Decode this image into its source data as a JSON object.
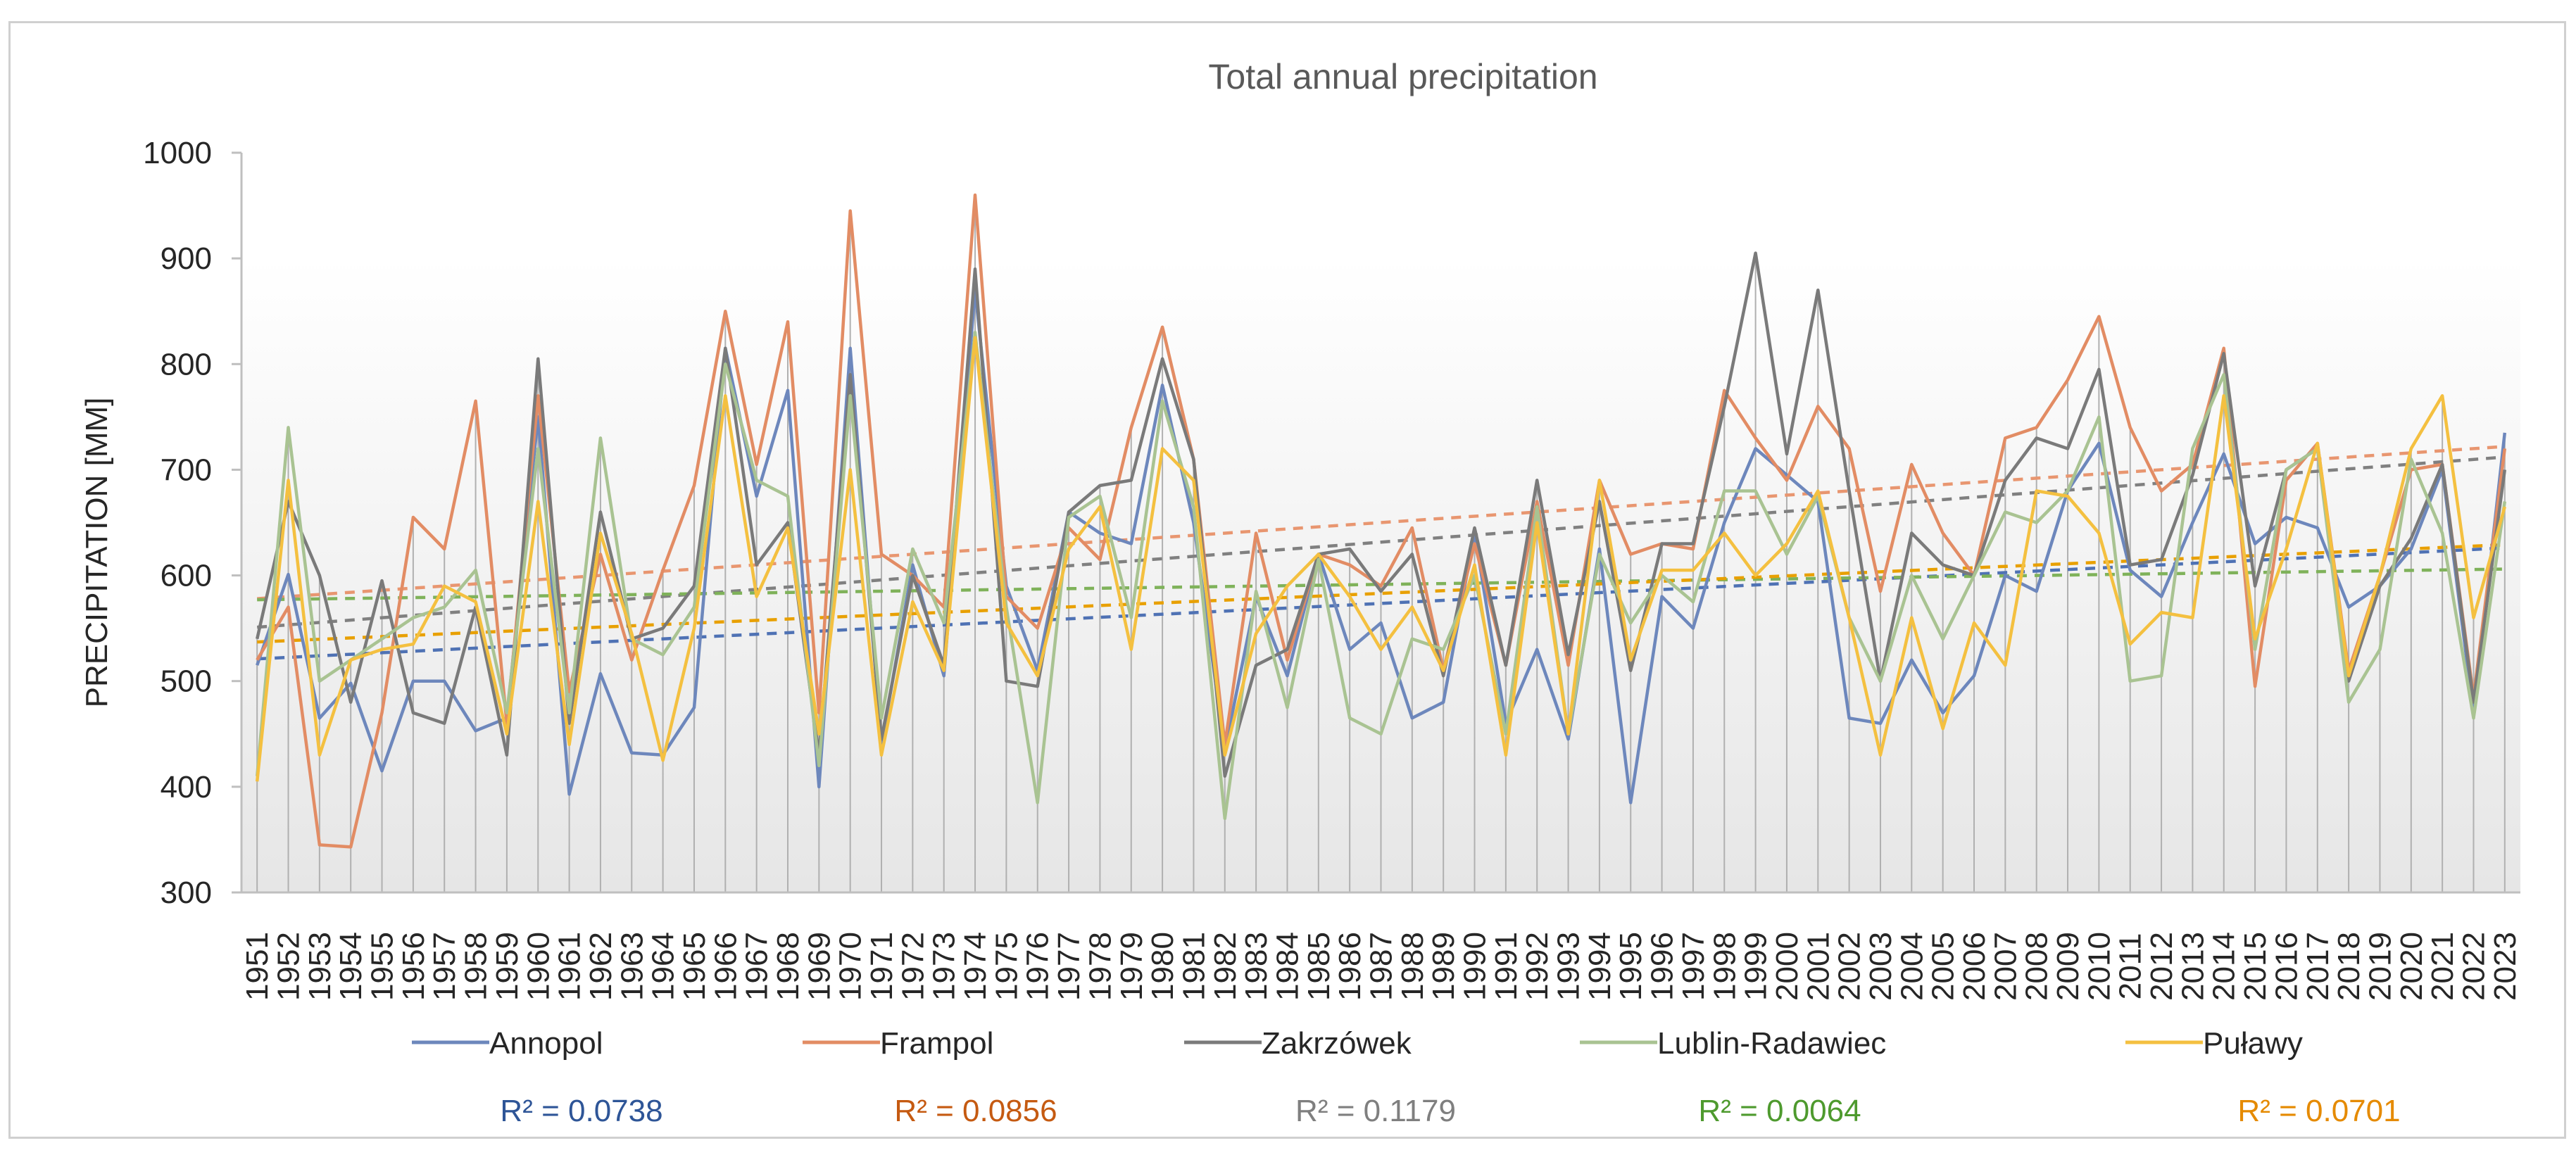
{
  "chart_data": {
    "type": "line",
    "title": "Total annual precipitation",
    "xlabel": "",
    "ylabel": "PRECIPITATION [MM]",
    "ylim": [
      300,
      1000
    ],
    "yticks": [
      300,
      400,
      500,
      600,
      700,
      800,
      900,
      1000
    ],
    "x": [
      1951,
      1952,
      1953,
      1954,
      1955,
      1956,
      1957,
      1958,
      1959,
      1960,
      1961,
      1962,
      1963,
      1964,
      1965,
      1966,
      1967,
      1968,
      1969,
      1970,
      1971,
      1972,
      1973,
      1974,
      1975,
      1976,
      1977,
      1978,
      1979,
      1980,
      1981,
      1982,
      1983,
      1984,
      1985,
      1986,
      1987,
      1988,
      1989,
      1990,
      1991,
      1992,
      1993,
      1994,
      1995,
      1996,
      1997,
      1998,
      1999,
      2000,
      2001,
      2002,
      2003,
      2004,
      2005,
      2006,
      2007,
      2008,
      2009,
      2010,
      2011,
      2012,
      2013,
      2014,
      2015,
      2016,
      2017,
      2018,
      2019,
      2020,
      2021,
      2022,
      2023
    ],
    "series": [
      {
        "name": "Annopol",
        "color": "#6d87bc",
        "trend_color": "#4f72b4",
        "r2_label": "R² = 0.0738",
        "r2_color": "#2e5597",
        "trend": [
          521,
          626
        ],
        "values": [
          515,
          601,
          465,
          498,
          415,
          500,
          500,
          453,
          465,
          750,
          393,
          507,
          432,
          430,
          475,
          815,
          675,
          775,
          400,
          815,
          440,
          610,
          505,
          870,
          590,
          510,
          660,
          640,
          630,
          780,
          650,
          435,
          580,
          505,
          620,
          530,
          555,
          465,
          480,
          640,
          460,
          530,
          445,
          625,
          385,
          580,
          550,
          650,
          720,
          695,
          670,
          465,
          460,
          520,
          470,
          505,
          600,
          585,
          680,
          725,
          605,
          580,
          650,
          715,
          630,
          655,
          645,
          570,
          590,
          625,
          700,
          470,
          735
        ]
      },
      {
        "name": "Frampol",
        "color": "#e28c64",
        "trend_color": "#e89670",
        "r2_label": "R² = 0.0856",
        "r2_color": "#c55a11",
        "trend": [
          578,
          722
        ],
        "values": [
          520,
          570,
          345,
          343,
          470,
          655,
          625,
          765,
          460,
          770,
          490,
          620,
          520,
          605,
          685,
          850,
          705,
          840,
          470,
          945,
          620,
          600,
          570,
          960,
          580,
          550,
          645,
          615,
          740,
          835,
          710,
          440,
          640,
          520,
          620,
          610,
          590,
          645,
          510,
          630,
          515,
          670,
          515,
          690,
          620,
          630,
          625,
          775,
          730,
          690,
          760,
          720,
          585,
          705,
          640,
          600,
          730,
          740,
          785,
          845,
          740,
          680,
          705,
          815,
          495,
          690,
          725,
          510,
          600,
          700,
          705,
          485,
          720
        ]
      },
      {
        "name": "Zakrzówek",
        "color": "#7a7a7a",
        "trend_color": "#808080",
        "r2_label": "R² = 0.1179",
        "r2_color": "#7f7f7f",
        "trend": [
          551,
          712
        ],
        "values": [
          540,
          670,
          600,
          480,
          595,
          470,
          460,
          570,
          430,
          805,
          460,
          660,
          540,
          550,
          590,
          815,
          610,
          650,
          430,
          790,
          445,
          600,
          515,
          890,
          500,
          495,
          660,
          685,
          690,
          805,
          710,
          410,
          515,
          530,
          620,
          625,
          585,
          620,
          505,
          645,
          515,
          690,
          525,
          670,
          510,
          630,
          630,
          760,
          905,
          715,
          870,
          680,
          500,
          640,
          610,
          600,
          690,
          730,
          720,
          795,
          610,
          615,
          695,
          810,
          590,
          700,
          720,
          500,
          590,
          635,
          705,
          480,
          700
        ]
      },
      {
        "name": "Lublin-Radawiec",
        "color": "#a9c392",
        "trend_color": "#7fb25a",
        "r2_label": "R² = 0.0064",
        "r2_color": "#4e9a2e",
        "trend": [
          577,
          606
        ],
        "values": [
          410,
          740,
          500,
          520,
          540,
          560,
          570,
          605,
          470,
          720,
          470,
          730,
          540,
          525,
          570,
          800,
          690,
          675,
          420,
          770,
          465,
          625,
          555,
          830,
          570,
          385,
          655,
          675,
          560,
          765,
          665,
          370,
          585,
          475,
          615,
          465,
          450,
          540,
          530,
          600,
          450,
          665,
          450,
          620,
          555,
          600,
          575,
          680,
          680,
          620,
          675,
          560,
          500,
          600,
          540,
          600,
          660,
          650,
          680,
          750,
          500,
          505,
          720,
          790,
          530,
          700,
          720,
          480,
          530,
          710,
          640,
          465,
          670
        ]
      },
      {
        "name": "Puławy",
        "color": "#f4c040",
        "trend_color": "#e8a000",
        "r2_label": "R² = 0.0701",
        "r2_color": "#e58a00",
        "trend": [
          537,
          629
        ],
        "values": [
          405,
          690,
          430,
          520,
          530,
          535,
          590,
          575,
          450,
          670,
          440,
          640,
          545,
          425,
          550,
          770,
          580,
          645,
          450,
          700,
          430,
          575,
          510,
          825,
          555,
          505,
          625,
          665,
          530,
          720,
          690,
          430,
          545,
          590,
          620,
          580,
          530,
          570,
          510,
          610,
          430,
          650,
          450,
          690,
          520,
          605,
          605,
          640,
          600,
          630,
          680,
          560,
          430,
          560,
          455,
          555,
          515,
          680,
          675,
          640,
          535,
          565,
          560,
          770,
          540,
          625,
          725,
          505,
          600,
          720,
          770,
          560,
          665
        ]
      }
    ]
  }
}
